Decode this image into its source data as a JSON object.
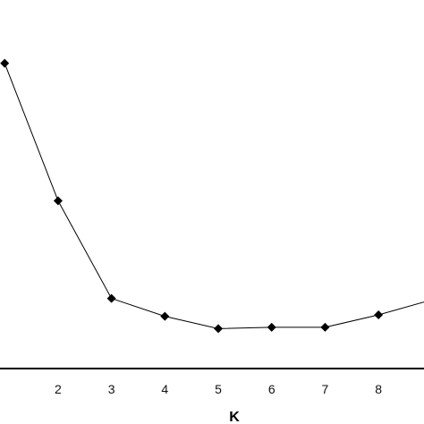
{
  "chart_data": {
    "type": "line",
    "title": "",
    "xlabel": "K",
    "ylabel": "",
    "x": [
      1,
      2,
      3,
      4,
      5,
      6,
      7,
      8,
      9
    ],
    "x_tick_labels": [
      "2",
      "3",
      "4",
      "5",
      "6",
      "7",
      "8"
    ],
    "xlim": [
      1.75,
      8.4
    ],
    "series": [
      {
        "values": [
          100,
          50,
          14.5,
          8,
          3.5,
          4,
          4,
          8.5,
          14
        ],
        "marker": "diamond",
        "color": "#000000"
      }
    ],
    "ylim": [
      -11,
      123
    ],
    "grid": false,
    "legend": "none"
  }
}
